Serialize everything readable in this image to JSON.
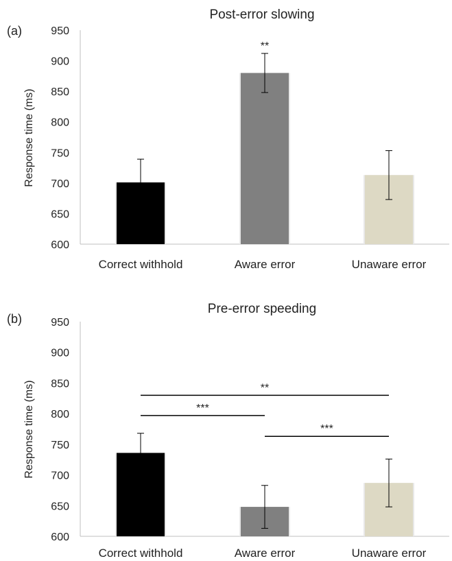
{
  "chart_data": [
    {
      "panel_label": "(a)",
      "type": "bar",
      "title": "Post-error slowing",
      "xlabel": "",
      "ylabel": "Response time (ms)",
      "ylim": [
        600,
        950
      ],
      "yticks": [
        600,
        650,
        700,
        750,
        800,
        850,
        900,
        950
      ],
      "grid": false,
      "categories": [
        "Correct withhold",
        "Aware error",
        "Unaware error"
      ],
      "values": [
        701,
        880,
        713
      ],
      "errors": [
        38,
        32,
        40
      ],
      "colors": [
        "#000000",
        "#808080",
        "#ddd9c4"
      ],
      "annotations": [
        {
          "category": "Aware error",
          "text": "**"
        }
      ],
      "comparisons": []
    },
    {
      "panel_label": "(b)",
      "type": "bar",
      "title": "Pre-error speeding",
      "xlabel": "",
      "ylabel": "Response time (ms)",
      "ylim": [
        600,
        950
      ],
      "yticks": [
        600,
        650,
        700,
        750,
        800,
        850,
        900,
        950
      ],
      "grid": false,
      "categories": [
        "Correct withhold",
        "Aware error",
        "Unaware error"
      ],
      "values": [
        736,
        648,
        687
      ],
      "errors": [
        32,
        35,
        39
      ],
      "colors": [
        "#000000",
        "#808080",
        "#ddd9c4"
      ],
      "annotations": [],
      "comparisons": [
        {
          "from": "Correct withhold",
          "to": "Unaware error",
          "y": 830,
          "text": "**"
        },
        {
          "from": "Correct withhold",
          "to": "Aware error",
          "y": 797,
          "text": "***"
        },
        {
          "from": "Aware error",
          "to": "Unaware error",
          "y": 763,
          "text": "***"
        }
      ]
    }
  ]
}
